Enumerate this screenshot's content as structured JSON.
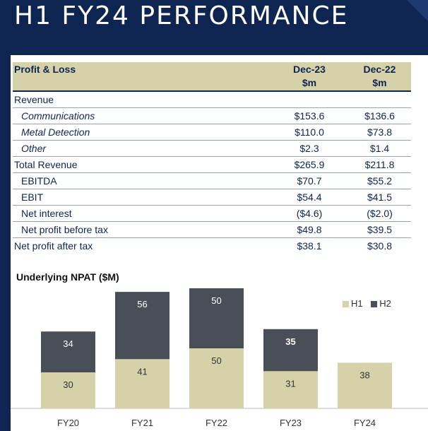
{
  "title": "H1 FY24 PERFORMANCE",
  "table": {
    "header": {
      "label": "Profit & Loss",
      "col1": "Dec-23",
      "col2": "Dec-22",
      "unit1": "$m",
      "unit2": "$m"
    },
    "rows": [
      {
        "label": "Revenue",
        "v1": "",
        "v2": "",
        "indent": 0
      },
      {
        "label": "Communications",
        "v1": "$153.6",
        "v2": "$136.6",
        "indent": 1
      },
      {
        "label": "Metal Detection",
        "v1": "$110.0",
        "v2": "$73.8",
        "indent": 1
      },
      {
        "label": "Other",
        "v1": "$2.3",
        "v2": "$1.4",
        "indent": 1
      },
      {
        "label": "Total Revenue",
        "v1": "$265.9",
        "v2": "$211.8",
        "indent": 0
      },
      {
        "label": "EBITDA",
        "v1": "$70.7",
        "v2": "$55.2",
        "indent": 2
      },
      {
        "label": "EBIT",
        "v1": "$54.4",
        "v2": "$41.5",
        "indent": 2
      },
      {
        "label": "Net interest",
        "v1": "($4.6)",
        "v2": "($2.0)",
        "indent": 2
      },
      {
        "label": "Net profit before tax",
        "v1": "$49.8",
        "v2": "$39.5",
        "indent": 2
      },
      {
        "label": "Net profit after tax",
        "v1": "$38.1",
        "v2": "$30.8",
        "indent": 0
      }
    ]
  },
  "chart_data": {
    "type": "bar",
    "stacked": true,
    "title": "Underlying NPAT ($M)",
    "categories": [
      "FY20",
      "FY21",
      "FY22",
      "FY23",
      "FY24"
    ],
    "series": [
      {
        "name": "H1",
        "values": [
          30,
          41,
          50,
          31,
          38
        ],
        "color": "#d5d1a9",
        "labelColor": "#333333"
      },
      {
        "name": "H2",
        "values": [
          34,
          56,
          50,
          35,
          null
        ],
        "color": "#4a4e57",
        "labelColor": "#ffffff"
      }
    ],
    "bold_labels": [
      {
        "series": "H2",
        "category": "FY23"
      }
    ],
    "legend": "top-right",
    "grid": false
  }
}
